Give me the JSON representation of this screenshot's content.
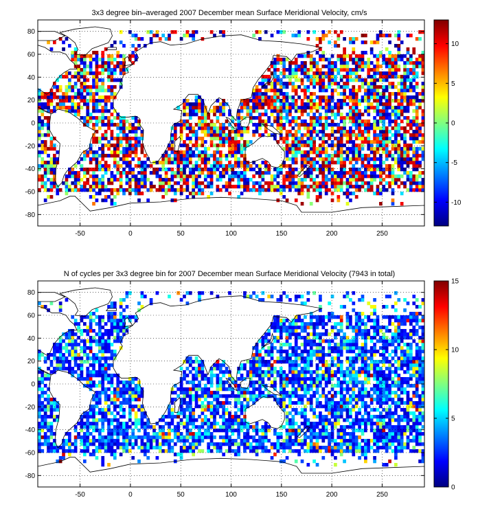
{
  "chart_data": [
    {
      "type": "heatmap",
      "title": "3x3 degree bin–averaged 2007 December mean Surface Meridional Velocity, cm/s",
      "xlim": [
        -92,
        292
      ],
      "ylim": [
        -90,
        90
      ],
      "bin_size_deg": 3,
      "x_ticks": [
        -50,
        0,
        50,
        100,
        150,
        200,
        250
      ],
      "y_ticks": [
        -80,
        -60,
        -40,
        -20,
        0,
        20,
        40,
        60,
        80
      ],
      "grid": true,
      "colormap": "jet",
      "colorbar": {
        "min": -13,
        "max": 13,
        "ticks": [
          -10,
          -5,
          0,
          5,
          10
        ]
      }
    },
    {
      "type": "heatmap",
      "title": "N of cycles per 3x3 degree bin for 2007 December mean Surface Meridional Velocity (7943 in total)",
      "xlim": [
        -92,
        292
      ],
      "ylim": [
        -90,
        90
      ],
      "bin_size_deg": 3,
      "x_ticks": [
        -50,
        0,
        50,
        100,
        150,
        200,
        250
      ],
      "y_ticks": [
        -80,
        -60,
        -40,
        -20,
        0,
        20,
        40,
        60,
        80
      ],
      "grid": true,
      "colormap": "jet",
      "colorbar": {
        "min": 0,
        "max": 15,
        "ticks": [
          0,
          5,
          10,
          15
        ]
      }
    }
  ]
}
